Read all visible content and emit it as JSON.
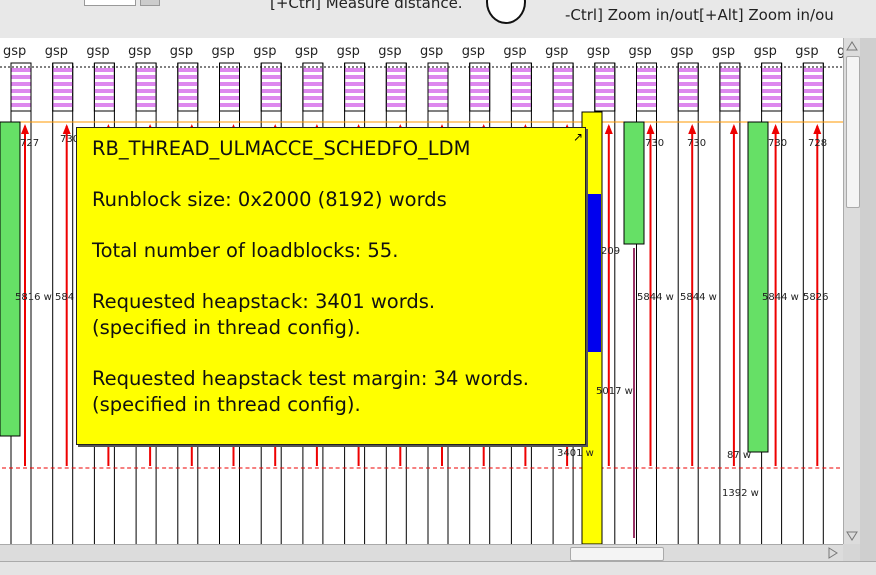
{
  "top_hints": {
    "left": "[+Ctrl] Measure distance.",
    "right": "-Ctrl] Zoom in/out[+Alt] Zoom in/ou"
  },
  "lane_label": "gsp",
  "lane_count": 21,
  "measurements": [
    "727",
    "730",
    "730",
    "730",
    "730",
    "728",
    "5816 w",
    "584",
    "5844 w",
    "5844 w",
    "5844 w",
    "5826",
    "209",
    "5017 w",
    "3401 w",
    "87 w",
    "1392 w"
  ],
  "tooltip": {
    "title": "RB_THREAD_ULMACCE_SCHEDFO_LDM",
    "runblock": "Runblock size: 0x2000 (8192) words",
    "loadblocks": "Total number of loadblocks: 55.",
    "heap_line1": "Requested heapstack: 3401 words.",
    "heap_line2": "(specified in thread config).",
    "margin_line1": "Requested heapstack test margin: 34 words.",
    "margin_line2": "(specified in thread config)."
  },
  "colors": {
    "tooltip_bg": "#ffff00",
    "heap_green": "#66e066",
    "stack_blue": "#0000ee",
    "highlight_yellow": "#ffff00",
    "arrow_red": "#ee0000",
    "block_magenta": "#dd88ee"
  }
}
